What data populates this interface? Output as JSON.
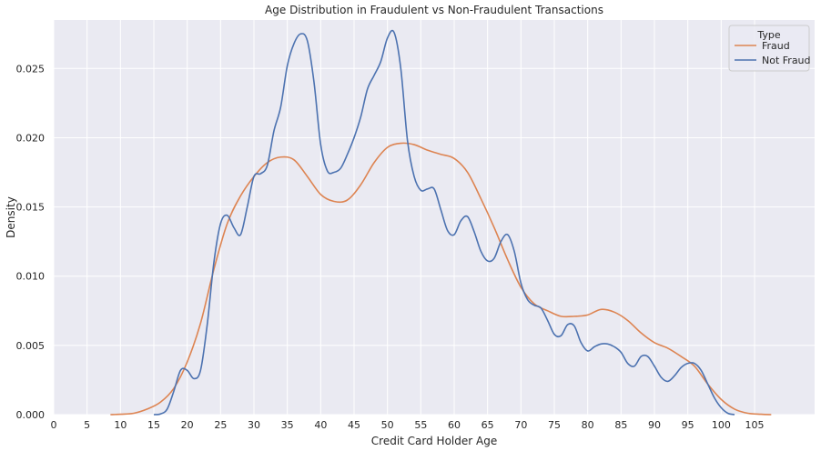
{
  "chart_data": {
    "type": "line",
    "title": "Age Distribution in Fraudulent vs Non-Fraudulent Transactions",
    "xlabel": "Credit Card Holder Age",
    "ylabel": "Density",
    "xlim": [
      0,
      114
    ],
    "ylim": [
      0,
      0.0285
    ],
    "xticks": [
      0,
      5,
      10,
      15,
      20,
      25,
      30,
      35,
      40,
      45,
      50,
      55,
      60,
      65,
      70,
      75,
      80,
      85,
      90,
      95,
      100,
      105
    ],
    "xtick_labels": [
      "0",
      "5",
      "10",
      "15",
      "20",
      "25",
      "30",
      "35",
      "40",
      "45",
      "50",
      "55",
      "60",
      "65",
      "70",
      "75",
      "80",
      "85",
      "90",
      "95",
      "100",
      "105"
    ],
    "yticks": [
      0,
      0.005,
      0.01,
      0.015,
      0.02,
      0.025
    ],
    "ytick_labels": [
      "0.000",
      "0.005",
      "0.010",
      "0.015",
      "0.020",
      "0.025"
    ],
    "grid": true,
    "legend": {
      "title": "Type",
      "placement": "top-right"
    },
    "series": [
      {
        "name": "Fraud",
        "color": "#dd8452",
        "points": [
          [
            8.5,
            0.0
          ],
          [
            10,
            3e-05
          ],
          [
            12,
            0.0001
          ],
          [
            14,
            0.0004
          ],
          [
            16,
            0.0009
          ],
          [
            18,
            0.0019
          ],
          [
            20,
            0.0038
          ],
          [
            22,
            0.0066
          ],
          [
            24,
            0.0105
          ],
          [
            26,
            0.0138
          ],
          [
            28,
            0.0158
          ],
          [
            30,
            0.0172
          ],
          [
            32,
            0.0182
          ],
          [
            34,
            0.0186
          ],
          [
            36,
            0.0184
          ],
          [
            38,
            0.0172
          ],
          [
            40,
            0.0159
          ],
          [
            42,
            0.0154
          ],
          [
            44,
            0.0155
          ],
          [
            46,
            0.0166
          ],
          [
            48,
            0.0182
          ],
          [
            50,
            0.0193
          ],
          [
            52,
            0.0196
          ],
          [
            54,
            0.0195
          ],
          [
            56,
            0.0191
          ],
          [
            58,
            0.0188
          ],
          [
            60,
            0.0185
          ],
          [
            62,
            0.0175
          ],
          [
            64,
            0.0156
          ],
          [
            66,
            0.0135
          ],
          [
            68,
            0.0112
          ],
          [
            70,
            0.0092
          ],
          [
            72,
            0.008
          ],
          [
            74,
            0.0075
          ],
          [
            76,
            0.0071
          ],
          [
            78,
            0.0071
          ],
          [
            80,
            0.0072
          ],
          [
            82,
            0.0076
          ],
          [
            84,
            0.0074
          ],
          [
            86,
            0.0068
          ],
          [
            88,
            0.0059
          ],
          [
            90,
            0.0052
          ],
          [
            92,
            0.0048
          ],
          [
            94,
            0.0042
          ],
          [
            96,
            0.0035
          ],
          [
            98,
            0.0022
          ],
          [
            100,
            0.0011
          ],
          [
            102,
            0.0004
          ],
          [
            104,
            0.0001
          ],
          [
            106,
            3e-05
          ],
          [
            107.5,
            0.0
          ]
        ]
      },
      {
        "name": "Not Fraud",
        "color": "#4c72b0",
        "points": [
          [
            15,
            0.0
          ],
          [
            16,
            5e-05
          ],
          [
            17,
            0.0004
          ],
          [
            18,
            0.0017
          ],
          [
            19,
            0.0032
          ],
          [
            20,
            0.0032
          ],
          [
            21,
            0.0026
          ],
          [
            22,
            0.0032
          ],
          [
            23,
            0.0065
          ],
          [
            24,
            0.011
          ],
          [
            25,
            0.0138
          ],
          [
            26,
            0.0144
          ],
          [
            27,
            0.0135
          ],
          [
            28,
            0.013
          ],
          [
            29,
            0.015
          ],
          [
            30,
            0.0172
          ],
          [
            31,
            0.0174
          ],
          [
            32,
            0.018
          ],
          [
            33,
            0.0205
          ],
          [
            34,
            0.0222
          ],
          [
            35,
            0.0252
          ],
          [
            36,
            0.0268
          ],
          [
            37,
            0.0275
          ],
          [
            38,
            0.027
          ],
          [
            39,
            0.024
          ],
          [
            40,
            0.0195
          ],
          [
            41,
            0.0176
          ],
          [
            42,
            0.0175
          ],
          [
            43,
            0.0178
          ],
          [
            44,
            0.0188
          ],
          [
            45,
            0.02
          ],
          [
            46,
            0.0215
          ],
          [
            47,
            0.0235
          ],
          [
            48,
            0.0245
          ],
          [
            49,
            0.0255
          ],
          [
            50,
            0.0272
          ],
          [
            51,
            0.0276
          ],
          [
            52,
            0.025
          ],
          [
            53,
            0.0198
          ],
          [
            54,
            0.0172
          ],
          [
            55,
            0.0162
          ],
          [
            56,
            0.0163
          ],
          [
            57,
            0.0163
          ],
          [
            58,
            0.0148
          ],
          [
            59,
            0.0133
          ],
          [
            60,
            0.013
          ],
          [
            61,
            0.014
          ],
          [
            62,
            0.0143
          ],
          [
            63,
            0.0132
          ],
          [
            64,
            0.0118
          ],
          [
            65,
            0.0111
          ],
          [
            66,
            0.0113
          ],
          [
            67,
            0.0125
          ],
          [
            68,
            0.013
          ],
          [
            69,
            0.0118
          ],
          [
            70,
            0.0095
          ],
          [
            71,
            0.0083
          ],
          [
            72,
            0.0079
          ],
          [
            73,
            0.0077
          ],
          [
            74,
            0.0068
          ],
          [
            75,
            0.0058
          ],
          [
            76,
            0.0057
          ],
          [
            77,
            0.0065
          ],
          [
            78,
            0.0064
          ],
          [
            79,
            0.0052
          ],
          [
            80,
            0.0046
          ],
          [
            81,
            0.0049
          ],
          [
            82,
            0.0051
          ],
          [
            83,
            0.0051
          ],
          [
            84,
            0.0049
          ],
          [
            85,
            0.0045
          ],
          [
            86,
            0.0037
          ],
          [
            87,
            0.0035
          ],
          [
            88,
            0.0042
          ],
          [
            89,
            0.0042
          ],
          [
            90,
            0.0035
          ],
          [
            91,
            0.0027
          ],
          [
            92,
            0.0024
          ],
          [
            93,
            0.0028
          ],
          [
            94,
            0.0034
          ],
          [
            95,
            0.0037
          ],
          [
            96,
            0.0037
          ],
          [
            97,
            0.0032
          ],
          [
            98,
            0.0022
          ],
          [
            99,
            0.0012
          ],
          [
            100,
            0.0005
          ],
          [
            101,
            0.0001
          ],
          [
            102,
            0.0
          ]
        ]
      }
    ]
  }
}
